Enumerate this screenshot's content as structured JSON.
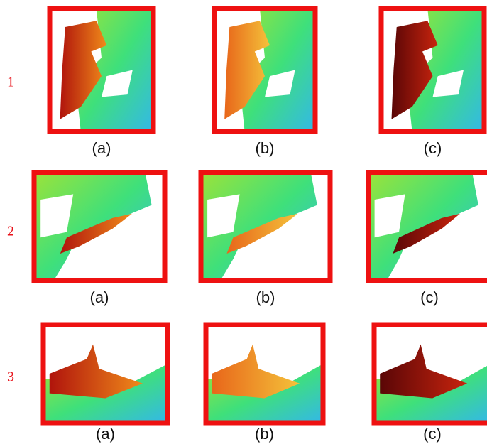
{
  "rows": [
    {
      "label": "1",
      "panels": [
        "(a)",
        "(b)",
        "(c)"
      ]
    },
    {
      "label": "2",
      "panels": [
        "(a)",
        "(b)",
        "(c)"
      ]
    },
    {
      "label": "3",
      "panels": [
        "(a)",
        "(b)",
        "(c)"
      ]
    }
  ]
}
